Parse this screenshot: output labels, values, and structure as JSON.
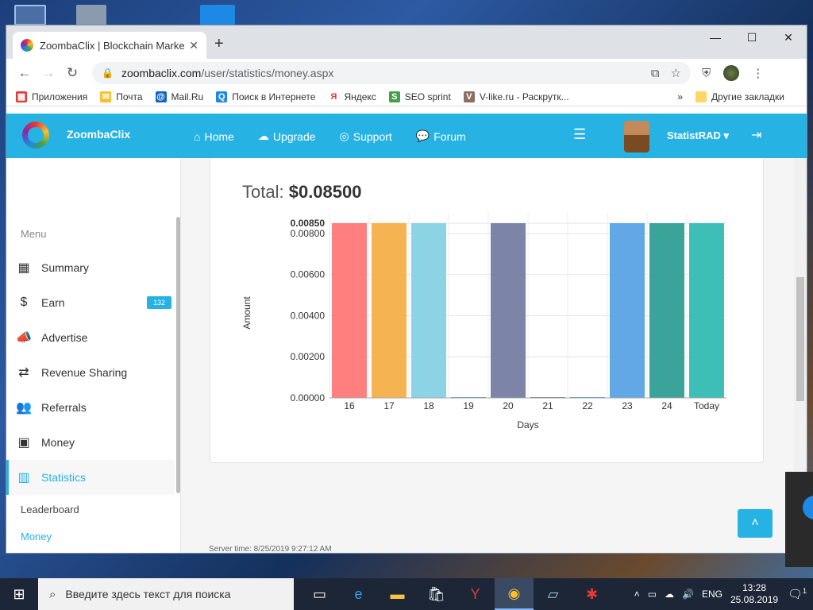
{
  "browser": {
    "tab_title": "ZoombaClix | Blockchain Marketi",
    "url_host": "zoombaclix.com",
    "url_path": "/user/statistics/money.aspx",
    "bookmarks": [
      {
        "label": "Приложения",
        "color": "#e53935"
      },
      {
        "label": "Почта",
        "color": "#fbc02d"
      },
      {
        "label": "Mail.Ru",
        "color": "#1565c0"
      },
      {
        "label": "Поиск в Интернете",
        "color": "#1e88e5"
      },
      {
        "label": "Яндекс",
        "color": "#e53935"
      },
      {
        "label": "SEO sprint",
        "color": "#43a047"
      },
      {
        "label": "V-like.ru - Раскрутк...",
        "color": "#8d6e63"
      }
    ],
    "other_bookmarks": "Другие закладки"
  },
  "site": {
    "brand": "ZoombaClix",
    "nav": [
      "Home",
      "Upgrade",
      "Support",
      "Forum"
    ],
    "username": "StatistRAD",
    "accent": "#27b2e4"
  },
  "sidebar": {
    "menu_heading": "Menu",
    "items": [
      {
        "label": "Summary",
        "icon": "grid-icon"
      },
      {
        "label": "Earn",
        "icon": "dollar-icon",
        "badge": "132"
      },
      {
        "label": "Advertise",
        "icon": "megaphone-icon"
      },
      {
        "label": "Revenue Sharing",
        "icon": "exchange-icon"
      },
      {
        "label": "Referrals",
        "icon": "users-icon"
      },
      {
        "label": "Money",
        "icon": "money-icon"
      },
      {
        "label": "Statistics",
        "icon": "bar-chart-icon"
      }
    ],
    "sub_items": [
      "Leaderboard",
      "Money"
    ]
  },
  "stats": {
    "total_label": "Total:",
    "total_value": "$0.08500",
    "server_time": "Server time: 8/25/2019 9:27:12 AM"
  },
  "chart_data": {
    "type": "bar",
    "xlabel": "Days",
    "ylabel": "Amount",
    "categories": [
      "16",
      "17",
      "18",
      "19",
      "20",
      "21",
      "22",
      "23",
      "24",
      "Today"
    ],
    "values": [
      0.0085,
      0.0085,
      0.0085,
      0.0,
      0.0085,
      0.0,
      0.0,
      0.0085,
      0.0085,
      0.0085
    ],
    "colors": [
      "#ff7f7f",
      "#f5b451",
      "#8dd3e6",
      "#4a90d9",
      "#7c84a8",
      "#6b6b6b",
      "#4a90d9",
      "#62a8e6",
      "#3aa39a",
      "#3dbfb8"
    ],
    "yticks": [
      "0.00000",
      "0.00200",
      "0.00400",
      "0.00600",
      "0.00800",
      "0.00850"
    ],
    "ytick_values": [
      0,
      0.002,
      0.004,
      0.006,
      0.008,
      0.0085
    ],
    "ylim": [
      0,
      0.0085
    ],
    "grid": true
  },
  "taskbar": {
    "search_placeholder": "Введите здесь текст для поиска",
    "lang": "ENG",
    "time": "13:28",
    "date": "25.08.2019",
    "notifications": "1"
  }
}
